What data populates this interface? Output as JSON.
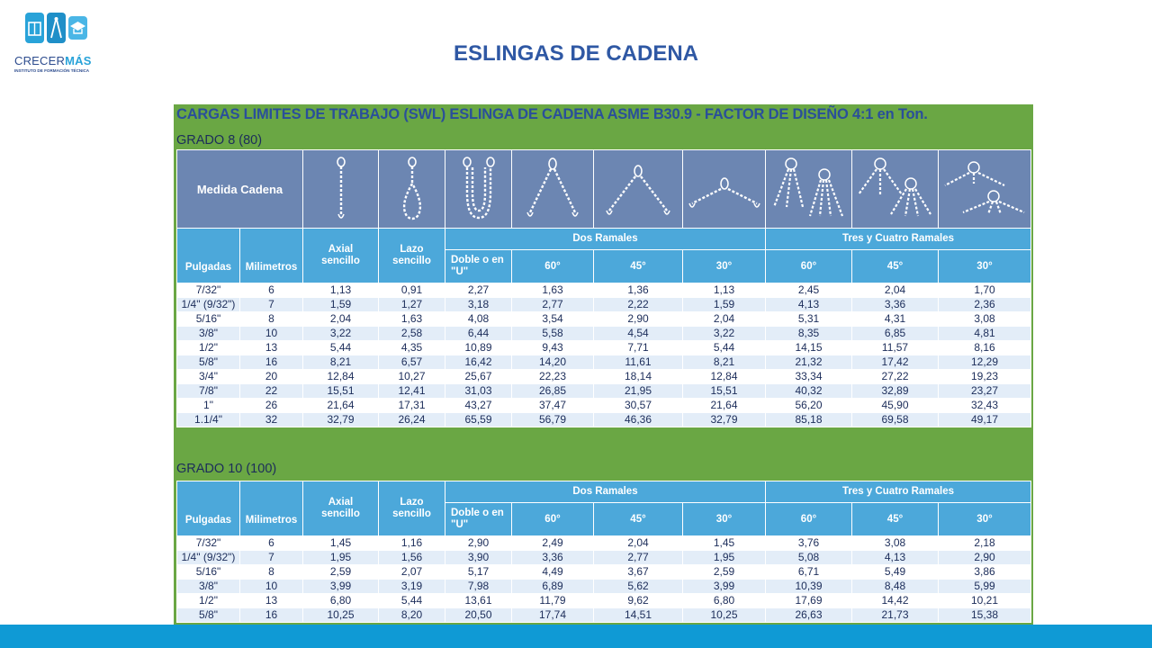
{
  "logo": {
    "brand_main": "CRECER",
    "brand_accent": "MÁS",
    "subtitle": "INSTITUTO DE FORMACIÓN TÉCNICA"
  },
  "page_title": "ESLINGAS DE CADENA",
  "panel": {
    "title": "CARGAS LIMITES DE TRABAJO (SWL) ESLINGA DE CADENA ASME B30.9 - FACTOR DE DISEÑO 4:1",
    "unit": "en Ton."
  },
  "grade8": {
    "label": "GRADO 8 (80)",
    "medida_label": "Medida Cadena",
    "header": {
      "pulgadas": "Pulgadas",
      "milimetros": "Milimetros",
      "axial": "Axial sencillo",
      "lazo": "Lazo sencillo",
      "dos_ramales": "Dos Ramales",
      "tres_cuatro": "Tres y Cuatro Ramales",
      "doble": "Doble o en \"U\"",
      "a60": "60°",
      "a45": "45°",
      "a30": "30°"
    },
    "rows": [
      [
        "7/32\"",
        "6",
        "1,13",
        "0,91",
        "2,27",
        "1,63",
        "1,36",
        "1,13",
        "2,45",
        "2,04",
        "1,70"
      ],
      [
        "1/4\" (9/32\")",
        "7",
        "1,59",
        "1,27",
        "3,18",
        "2,77",
        "2,22",
        "1,59",
        "4,13",
        "3,36",
        "2,36"
      ],
      [
        "5/16\"",
        "8",
        "2,04",
        "1,63",
        "4,08",
        "3,54",
        "2,90",
        "2,04",
        "5,31",
        "4,31",
        "3,08"
      ],
      [
        "3/8\"",
        "10",
        "3,22",
        "2,58",
        "6,44",
        "5,58",
        "4,54",
        "3,22",
        "8,35",
        "6,85",
        "4,81"
      ],
      [
        "1/2\"",
        "13",
        "5,44",
        "4,35",
        "10,89",
        "9,43",
        "7,71",
        "5,44",
        "14,15",
        "11,57",
        "8,16"
      ],
      [
        "5/8\"",
        "16",
        "8,21",
        "6,57",
        "16,42",
        "14,20",
        "11,61",
        "8,21",
        "21,32",
        "17,42",
        "12,29"
      ],
      [
        "3/4\"",
        "20",
        "12,84",
        "10,27",
        "25,67",
        "22,23",
        "18,14",
        "12,84",
        "33,34",
        "27,22",
        "19,23"
      ],
      [
        "7/8\"",
        "22",
        "15,51",
        "12,41",
        "31,03",
        "26,85",
        "21,95",
        "15,51",
        "40,32",
        "32,89",
        "23,27"
      ],
      [
        "1\"",
        "26",
        "21,64",
        "17,31",
        "43,27",
        "37,47",
        "30,57",
        "21,64",
        "56,20",
        "45,90",
        "32,43"
      ],
      [
        "1.1/4\"",
        "32",
        "32,79",
        "26,24",
        "65,59",
        "56,79",
        "46,36",
        "32,79",
        "85,18",
        "69,58",
        "49,17"
      ]
    ]
  },
  "grade10": {
    "label": "GRADO 10 (100)",
    "header": {
      "pulgadas": "Pulgadas",
      "milimetros": "Milimetros",
      "axial": "Axial sencillo",
      "lazo": "Lazo sencillo",
      "dos_ramales": "Dos Ramales",
      "tres_cuatro": "Tres y Cuatro Ramales",
      "doble": "Doble o en \"U\"",
      "a60": "60°",
      "a45": "45°",
      "a30": "30°"
    },
    "rows": [
      [
        "7/32\"",
        "6",
        "1,45",
        "1,16",
        "2,90",
        "2,49",
        "2,04",
        "1,45",
        "3,76",
        "3,08",
        "2,18"
      ],
      [
        "1/4\" (9/32\")",
        "7",
        "1,95",
        "1,56",
        "3,90",
        "3,36",
        "2,77",
        "1,95",
        "5,08",
        "4,13",
        "2,90"
      ],
      [
        "5/16\"",
        "8",
        "2,59",
        "2,07",
        "5,17",
        "4,49",
        "3,67",
        "2,59",
        "6,71",
        "5,49",
        "3,86"
      ],
      [
        "3/8\"",
        "10",
        "3,99",
        "3,19",
        "7,98",
        "6,89",
        "5,62",
        "3,99",
        "10,39",
        "8,48",
        "5,99"
      ],
      [
        "1/2\"",
        "13",
        "6,80",
        "5,44",
        "13,61",
        "11,79",
        "9,62",
        "6,80",
        "17,69",
        "14,42",
        "10,21"
      ],
      [
        "5/8\"",
        "16",
        "10,25",
        "8,20",
        "20,50",
        "17,74",
        "14,51",
        "10,25",
        "26,63",
        "21,73",
        "15,38"
      ]
    ]
  },
  "colors": {
    "title": "#2f58a4",
    "panel_bg": "#6aa744",
    "header_blue": "#4ca8da",
    "icon_row": "#6c86b2",
    "bottom_bar": "#0f9ad5"
  },
  "icons": [
    "single-leg-chain-icon",
    "basket-loop-chain-icon",
    "double-basket-chain-icon",
    "two-leg-60-chain-icon",
    "two-leg-45-chain-icon",
    "two-leg-30-chain-icon",
    "three-four-leg-60-chain-icon",
    "three-four-leg-45-chain-icon",
    "three-four-leg-30-chain-icon"
  ]
}
